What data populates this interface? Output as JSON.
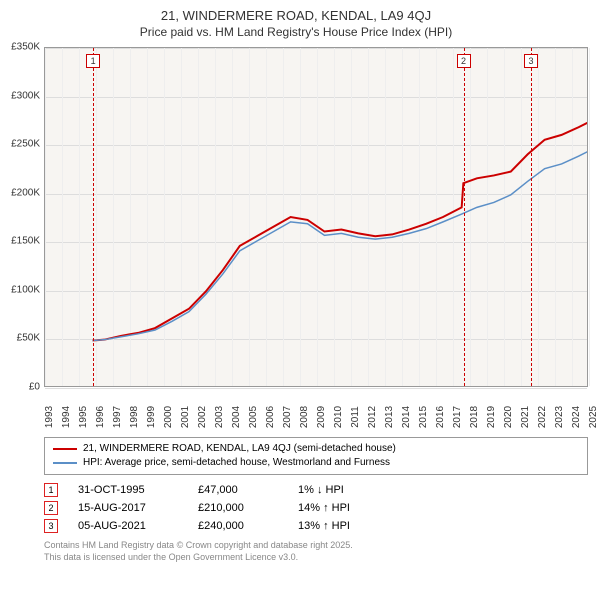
{
  "title": "21, WINDERMERE ROAD, KENDAL, LA9 4QJ",
  "subtitle": "Price paid vs. HM Land Registry's House Price Index (HPI)",
  "chart": {
    "type": "line",
    "background_color": "#f7f5f2",
    "grid_color": "#dddddd",
    "border_color": "#999999",
    "x_years": [
      1993,
      1994,
      1995,
      1996,
      1997,
      1998,
      1999,
      2000,
      2001,
      2002,
      2003,
      2004,
      2005,
      2006,
      2007,
      2008,
      2009,
      2010,
      2011,
      2012,
      2013,
      2014,
      2015,
      2016,
      2017,
      2018,
      2019,
      2020,
      2021,
      2022,
      2023,
      2024,
      2025
    ],
    "ylim": [
      0,
      350000
    ],
    "ytick_step": 50000,
    "ylabels": [
      "£0",
      "£50K",
      "£100K",
      "£150K",
      "£200K",
      "£250K",
      "£300K",
      "£350K"
    ],
    "series": [
      {
        "name": "21, WINDERMERE ROAD, KENDAL, LA9 4QJ (semi-detached house)",
        "color": "#cc0000",
        "width": 2,
        "points": [
          [
            1995.8,
            47
          ],
          [
            1996.5,
            48
          ],
          [
            1997.5,
            52
          ],
          [
            1998.5,
            55
          ],
          [
            1999.5,
            60
          ],
          [
            2000.5,
            70
          ],
          [
            2001.5,
            80
          ],
          [
            2002.5,
            98
          ],
          [
            2003.5,
            120
          ],
          [
            2004.5,
            145
          ],
          [
            2005.5,
            155
          ],
          [
            2006.5,
            165
          ],
          [
            2007.5,
            175
          ],
          [
            2008.5,
            172
          ],
          [
            2009.5,
            160
          ],
          [
            2010.5,
            162
          ],
          [
            2011.5,
            158
          ],
          [
            2012.5,
            155
          ],
          [
            2013.5,
            157
          ],
          [
            2014.5,
            162
          ],
          [
            2015.5,
            168
          ],
          [
            2016.5,
            175
          ],
          [
            2017.6,
            185
          ],
          [
            2017.7,
            210
          ],
          [
            2018.5,
            215
          ],
          [
            2019.5,
            218
          ],
          [
            2020.5,
            222
          ],
          [
            2021.5,
            240
          ],
          [
            2022.5,
            255
          ],
          [
            2023.5,
            260
          ],
          [
            2024.5,
            268
          ],
          [
            2025.3,
            275
          ]
        ]
      },
      {
        "name": "HPI: Average price, semi-detached house, Westmorland and Furness",
        "color": "#5b8fc7",
        "width": 1.5,
        "points": [
          [
            1995.8,
            47
          ],
          [
            1996.5,
            48
          ],
          [
            1997.5,
            51
          ],
          [
            1998.5,
            54
          ],
          [
            1999.5,
            58
          ],
          [
            2000.5,
            67
          ],
          [
            2001.5,
            77
          ],
          [
            2002.5,
            95
          ],
          [
            2003.5,
            116
          ],
          [
            2004.5,
            140
          ],
          [
            2005.5,
            150
          ],
          [
            2006.5,
            160
          ],
          [
            2007.5,
            170
          ],
          [
            2008.5,
            168
          ],
          [
            2009.5,
            156
          ],
          [
            2010.5,
            158
          ],
          [
            2011.5,
            154
          ],
          [
            2012.5,
            152
          ],
          [
            2013.5,
            154
          ],
          [
            2014.5,
            158
          ],
          [
            2015.5,
            163
          ],
          [
            2016.5,
            170
          ],
          [
            2017.6,
            178
          ],
          [
            2018.5,
            185
          ],
          [
            2019.5,
            190
          ],
          [
            2020.5,
            198
          ],
          [
            2021.5,
            212
          ],
          [
            2022.5,
            225
          ],
          [
            2023.5,
            230
          ],
          [
            2024.5,
            238
          ],
          [
            2025.3,
            245
          ]
        ]
      }
    ],
    "markers": [
      {
        "n": "1",
        "year": 1995.83,
        "color": "#cc0000"
      },
      {
        "n": "2",
        "year": 2017.62,
        "color": "#cc0000"
      },
      {
        "n": "3",
        "year": 2021.59,
        "color": "#cc0000"
      }
    ]
  },
  "legend": [
    {
      "label": "21, WINDERMERE ROAD, KENDAL, LA9 4QJ (semi-detached house)",
      "color": "#cc0000"
    },
    {
      "label": "HPI: Average price, semi-detached house, Westmorland and Furness",
      "color": "#5b8fc7"
    }
  ],
  "sales": [
    {
      "n": "1",
      "date": "31-OCT-1995",
      "price": "£47,000",
      "diff": "1% ↓ HPI"
    },
    {
      "n": "2",
      "date": "15-AUG-2017",
      "price": "£210,000",
      "diff": "14% ↑ HPI"
    },
    {
      "n": "3",
      "date": "05-AUG-2021",
      "price": "£240,000",
      "diff": "13% ↑ HPI"
    }
  ],
  "attribution": {
    "line1": "Contains HM Land Registry data © Crown copyright and database right 2025.",
    "line2": "This data is licensed under the Open Government Licence v3.0."
  }
}
